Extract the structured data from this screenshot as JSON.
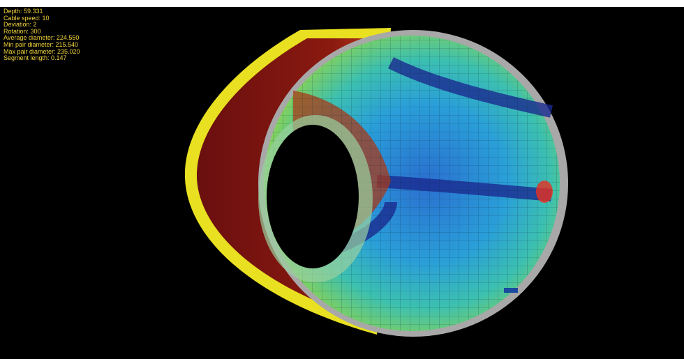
{
  "info_lines": [
    "Depth: 59.331",
    "Cable speed: 10",
    "Deviation: 2",
    "Rotation: 300",
    "Average diameter: 224.550",
    "Min pair diameter: 215.540",
    "Max pair diameter: 235.020",
    "Segment length: 0.147"
  ]
}
